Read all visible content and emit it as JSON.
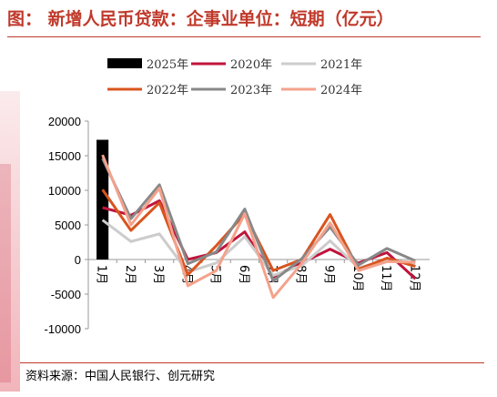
{
  "title": "图：  新增人民币贷款：企事业单位：短期（亿元）",
  "source": "资料来源：中国人民银行、创元研究",
  "chart_data": {
    "type": "line",
    "categories": [
      "1月",
      "2月",
      "3月",
      "4月",
      "5月",
      "6月",
      "7月",
      "8月",
      "9月",
      "10月",
      "11月",
      "12月"
    ],
    "ylim": [
      -10000,
      20000
    ],
    "yticks": [
      "20000",
      "15000",
      "10000",
      "5000",
      "0",
      "-5000",
      "-10000"
    ],
    "legend_position": "top",
    "series": [
      {
        "name": "2025年",
        "kind": "bar",
        "color": "#000000",
        "values": [
          17300,
          null,
          null,
          null,
          null,
          null,
          null,
          null,
          null,
          null,
          null,
          null
        ]
      },
      {
        "name": "2020年",
        "kind": "line",
        "color": "#c0143c",
        "values": [
          7500,
          6400,
          8500,
          0,
          1000,
          4000,
          -2500,
          -500,
          1500,
          -500,
          1000,
          -2800
        ]
      },
      {
        "name": "2021年",
        "kind": "line",
        "color": "#cccccc",
        "values": [
          5700,
          2600,
          3700,
          -1800,
          -500,
          3300,
          -2300,
          -900,
          2700,
          -1200,
          -100,
          -600
        ]
      },
      {
        "name": "2022年",
        "kind": "line",
        "color": "#d9541e",
        "values": [
          10100,
          4200,
          8200,
          -2200,
          2000,
          6600,
          -1600,
          0,
          6500,
          -1400,
          200,
          -1000
        ]
      },
      {
        "name": "2023年",
        "kind": "line",
        "color": "#888888",
        "values": [
          14600,
          5900,
          10800,
          -600,
          1100,
          7300,
          -3100,
          100,
          4700,
          -800,
          1600,
          -200
        ]
      },
      {
        "name": "2024年",
        "kind": "line",
        "color": "#f4a28c",
        "values": [
          15100,
          5000,
          10300,
          -3800,
          -1600,
          6600,
          -5500,
          -600,
          5300,
          -1600,
          -300,
          -400
        ]
      }
    ]
  }
}
